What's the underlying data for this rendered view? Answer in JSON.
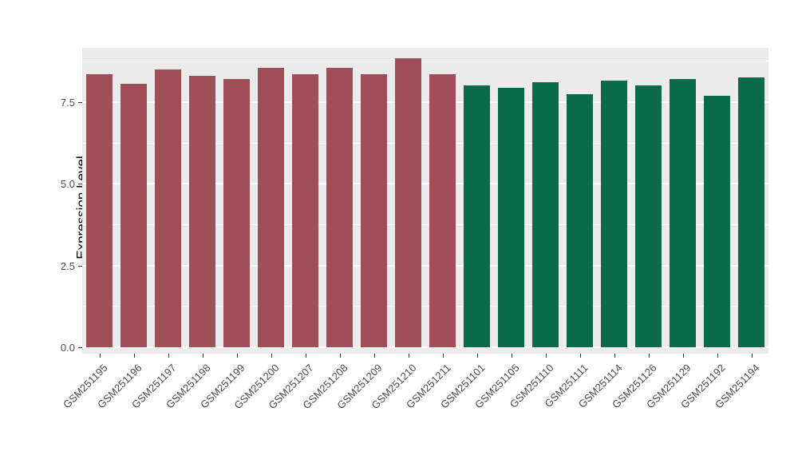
{
  "chart_data": {
    "type": "bar",
    "title": "",
    "xlabel": "",
    "ylabel": "Expression Level",
    "categories": [
      "GSM251195",
      "GSM251196",
      "GSM251197",
      "GSM251198",
      "GSM251199",
      "GSM251200",
      "GSM251207",
      "GSM251208",
      "GSM251209",
      "GSM251210",
      "GSM251211",
      "GSM251101",
      "GSM251105",
      "GSM251110",
      "GSM251111",
      "GSM251114",
      "GSM251126",
      "GSM251129",
      "GSM251192",
      "GSM251194"
    ],
    "values": [
      8.35,
      8.05,
      8.5,
      8.3,
      8.2,
      8.55,
      8.35,
      8.55,
      8.35,
      8.85,
      8.35,
      8.0,
      7.95,
      8.1,
      7.75,
      8.15,
      8.0,
      8.2,
      7.7,
      8.25
    ],
    "groups": [
      "group1",
      "group1",
      "group1",
      "group1",
      "group1",
      "group1",
      "group1",
      "group1",
      "group1",
      "group1",
      "group1",
      "group2",
      "group2",
      "group2",
      "group2",
      "group2",
      "group2",
      "group2",
      "group2",
      "group2"
    ],
    "group_colors": {
      "group1": "#a04e58",
      "group2": "#0a6b4b"
    },
    "yticks": [
      0.0,
      2.5,
      5.0,
      7.5
    ],
    "ytick_labels": [
      "0.0",
      "2.5",
      "5.0",
      "7.5"
    ],
    "yminor": [
      1.25,
      3.75,
      6.25,
      8.75
    ],
    "ylim": [
      -0.2,
      9.16
    ],
    "zero_baseline": 0,
    "grid": true,
    "legend_position": "none",
    "panel_background": "#ebebeb",
    "grid_color": "#ffffff"
  }
}
